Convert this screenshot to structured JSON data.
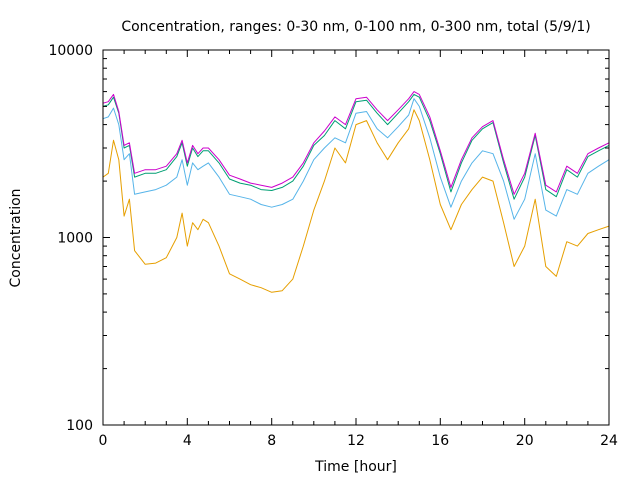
{
  "chart_data": {
    "type": "line",
    "title": "Concentration, ranges: 0-30 nm, 0-100 nm, 0-300 nm, total (5/9/1)",
    "xlabel": "Time [hour]",
    "ylabel": "Concentration",
    "xlim": [
      0,
      24
    ],
    "ylim": [
      100,
      10000
    ],
    "y_scale": "log",
    "grid": false,
    "legend": "none",
    "x_ticks": [
      "0",
      "4",
      "8",
      "12",
      "16",
      "20",
      "24"
    ],
    "y_ticks": [
      "100",
      "1000",
      "10000"
    ],
    "x": [
      0,
      0.25,
      0.5,
      0.75,
      1,
      1.25,
      1.5,
      2,
      2.5,
      3,
      3.5,
      3.75,
      4,
      4.25,
      4.5,
      4.75,
      5,
      5.5,
      6,
      6.5,
      7,
      7.5,
      8,
      8.5,
      9,
      9.5,
      10,
      10.5,
      11,
      11.5,
      12,
      12.5,
      13,
      13.5,
      14,
      14.5,
      14.75,
      15,
      15.5,
      16,
      16.5,
      17,
      17.5,
      18,
      18.5,
      19,
      19.5,
      20,
      20.5,
      21,
      21.5,
      22,
      22.5,
      23,
      23.5,
      24
    ],
    "series": [
      {
        "color": "#e69f00",
        "values": [
          2100,
          2200,
          3300,
          2600,
          1300,
          1600,
          850,
          720,
          730,
          780,
          1000,
          1350,
          900,
          1200,
          1100,
          1250,
          1200,
          900,
          640,
          600,
          560,
          540,
          510,
          520,
          600,
          900,
          1400,
          2000,
          3000,
          2500,
          4000,
          4200,
          3200,
          2600,
          3200,
          3800,
          4800,
          4200,
          2600,
          1500,
          1100,
          1500,
          1800,
          2100,
          2000,
          1200,
          700,
          900,
          1600,
          700,
          620,
          950,
          900,
          1050,
          1100,
          1150
        ]
      },
      {
        "color": "#56b4e9",
        "values": [
          4300,
          4400,
          4900,
          4000,
          2600,
          2800,
          1700,
          1750,
          1800,
          1900,
          2100,
          2600,
          1900,
          2500,
          2300,
          2400,
          2500,
          2100,
          1700,
          1650,
          1600,
          1500,
          1450,
          1500,
          1600,
          2000,
          2600,
          3000,
          3400,
          3200,
          4600,
          4700,
          3800,
          3400,
          3900,
          4500,
          5500,
          5000,
          3400,
          2100,
          1450,
          2000,
          2500,
          2900,
          2800,
          2000,
          1250,
          1600,
          2800,
          1400,
          1300,
          1800,
          1700,
          2200,
          2400,
          2600
        ]
      },
      {
        "color": "#009e73",
        "values": [
          5000,
          5100,
          5600,
          4600,
          3000,
          3100,
          2100,
          2200,
          2200,
          2300,
          2700,
          3200,
          2400,
          3000,
          2700,
          2900,
          2900,
          2500,
          2050,
          1950,
          1900,
          1800,
          1780,
          1850,
          2000,
          2400,
          3100,
          3500,
          4200,
          3800,
          5300,
          5400,
          4600,
          4000,
          4600,
          5300,
          5800,
          5600,
          4200,
          2800,
          1750,
          2500,
          3300,
          3800,
          4100,
          2500,
          1600,
          2100,
          3500,
          1800,
          1650,
          2300,
          2100,
          2700,
          2900,
          3100
        ]
      },
      {
        "color": "#cc00cc",
        "values": [
          5200,
          5300,
          5800,
          4700,
          3100,
          3200,
          2200,
          2300,
          2300,
          2400,
          2800,
          3300,
          2500,
          3100,
          2800,
          3000,
          3000,
          2600,
          2150,
          2050,
          1950,
          1900,
          1850,
          1950,
          2100,
          2500,
          3200,
          3700,
          4400,
          4000,
          5500,
          5600,
          4800,
          4200,
          4800,
          5500,
          6000,
          5800,
          4400,
          2900,
          1850,
          2600,
          3400,
          3900,
          4200,
          2600,
          1700,
          2200,
          3600,
          1900,
          1750,
          2400,
          2200,
          2800,
          3000,
          3200
        ]
      }
    ]
  }
}
